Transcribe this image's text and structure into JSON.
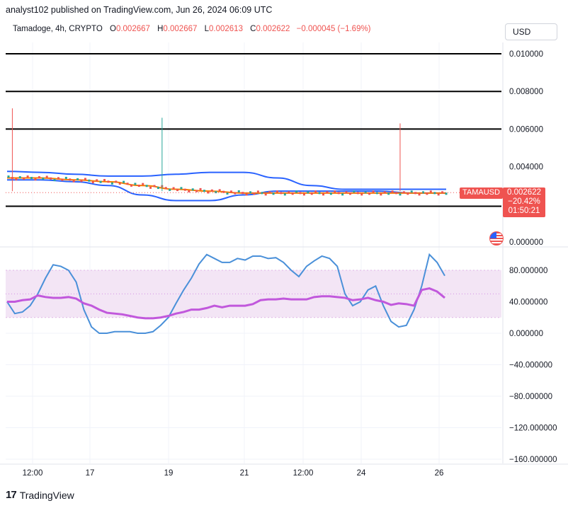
{
  "header": {
    "caption": "analyst102 published on TradingView.com, Jun 26, 2024 06:09 UTC",
    "symbol": "Tamadoge, 4h, CRYPTO",
    "o_label": "O",
    "o_value": "0.002667",
    "h_label": "H",
    "h_value": "0.002667",
    "l_label": "L",
    "l_value": "0.002613",
    "c_label": "C",
    "c_value": "0.002622",
    "change": "−0.000045 (−1.69%)"
  },
  "currency_button": "USD",
  "price_tag": {
    "symbol": "TAMAUSD",
    "price": "0.002622",
    "change_pct": "−20.42%",
    "countdown": "01:50:21"
  },
  "footer": {
    "brand": "TradingView",
    "logo_glyph": "17"
  },
  "colors": {
    "up": "#26a69a",
    "down": "#ef5350",
    "bb_band": "#2962ff",
    "ma": "#f57c00",
    "stoch_k": "#4a90d9",
    "stoch_d": "#c158dc",
    "stoch_band_fill": "#f3e5f5",
    "level_line": "#000000"
  },
  "chart_data": [
    {
      "type": "candlestick",
      "panel": "price",
      "ylim": [
        0.0,
        0.0105
      ],
      "price_axis_ticks": [
        "0.010000",
        "0.008000",
        "0.006000",
        "0.004000",
        "0.000000"
      ],
      "price_axis_tick_values": [
        0.01,
        0.008,
        0.006,
        0.004,
        0.0
      ],
      "x_axis_ticks": [
        "12:00",
        "17",
        "19",
        "21",
        "12:00",
        "24",
        "26"
      ],
      "horizontal_levels": [
        0.01,
        0.008,
        0.006,
        0.0019
      ],
      "wick_spikes": [
        {
          "index": 1,
          "high": 0.0071,
          "color": "down"
        },
        {
          "index": 40,
          "high": 0.0066,
          "color": "up"
        },
        {
          "index": 102,
          "high": 0.0063,
          "color": "down"
        }
      ],
      "bollinger_upper": [
        0.00375,
        0.0037,
        0.0036,
        0.0035,
        0.0035,
        0.0036,
        0.0037,
        0.0037,
        0.0034,
        0.003,
        0.0028,
        0.0028,
        0.0028,
        0.0028
      ],
      "bollinger_lower": [
        0.0033,
        0.0033,
        0.0032,
        0.003,
        0.0025,
        0.0022,
        0.0022,
        0.0025,
        0.0027,
        0.0027,
        0.0027,
        0.0027,
        0.0026,
        0.0026
      ],
      "moving_average": [
        0.0034,
        0.0034,
        0.0033,
        0.0032,
        0.003,
        0.0028,
        0.0027,
        0.0026,
        0.0026,
        0.0026,
        0.0026,
        0.0026,
        0.0026,
        0.0026
      ],
      "last_close": 0.002622
    },
    {
      "type": "line",
      "panel": "stochastic",
      "ylim": [
        -165,
        100
      ],
      "axis_ticks": [
        "80.000000",
        "40.000000",
        "0.000000",
        "−40.000000",
        "−80.000000",
        "−120.000000",
        "−160.000000"
      ],
      "axis_tick_values": [
        80,
        40,
        0,
        -40,
        -80,
        -120,
        -160
      ],
      "band": [
        20,
        80
      ],
      "series": [
        {
          "values": [
            40,
            25,
            27,
            35,
            50,
            70,
            87,
            85,
            80,
            65,
            30,
            8,
            0,
            0,
            2,
            2,
            2,
            0,
            0,
            2,
            10,
            20,
            38,
            55,
            70,
            88,
            100,
            95,
            90,
            90,
            95,
            93,
            98,
            98,
            95,
            96,
            90,
            80,
            72,
            85,
            92,
            98,
            95,
            85,
            50,
            35,
            40,
            55,
            60,
            35,
            15,
            8,
            10,
            30,
            60,
            100,
            90,
            73
          ]
        },
        {
          "values": [
            40,
            40,
            42,
            43,
            48,
            46,
            45,
            45,
            46,
            44,
            38,
            35,
            30,
            26,
            25,
            24,
            22,
            20,
            19,
            19,
            20,
            22,
            25,
            27,
            30,
            30,
            32,
            35,
            33,
            35,
            35,
            35,
            37,
            42,
            43,
            43,
            44,
            43,
            43,
            43,
            46,
            47,
            47,
            46,
            45,
            42,
            43,
            45,
            42,
            40,
            36,
            38,
            37,
            35,
            55,
            57,
            53,
            45
          ]
        }
      ]
    }
  ]
}
